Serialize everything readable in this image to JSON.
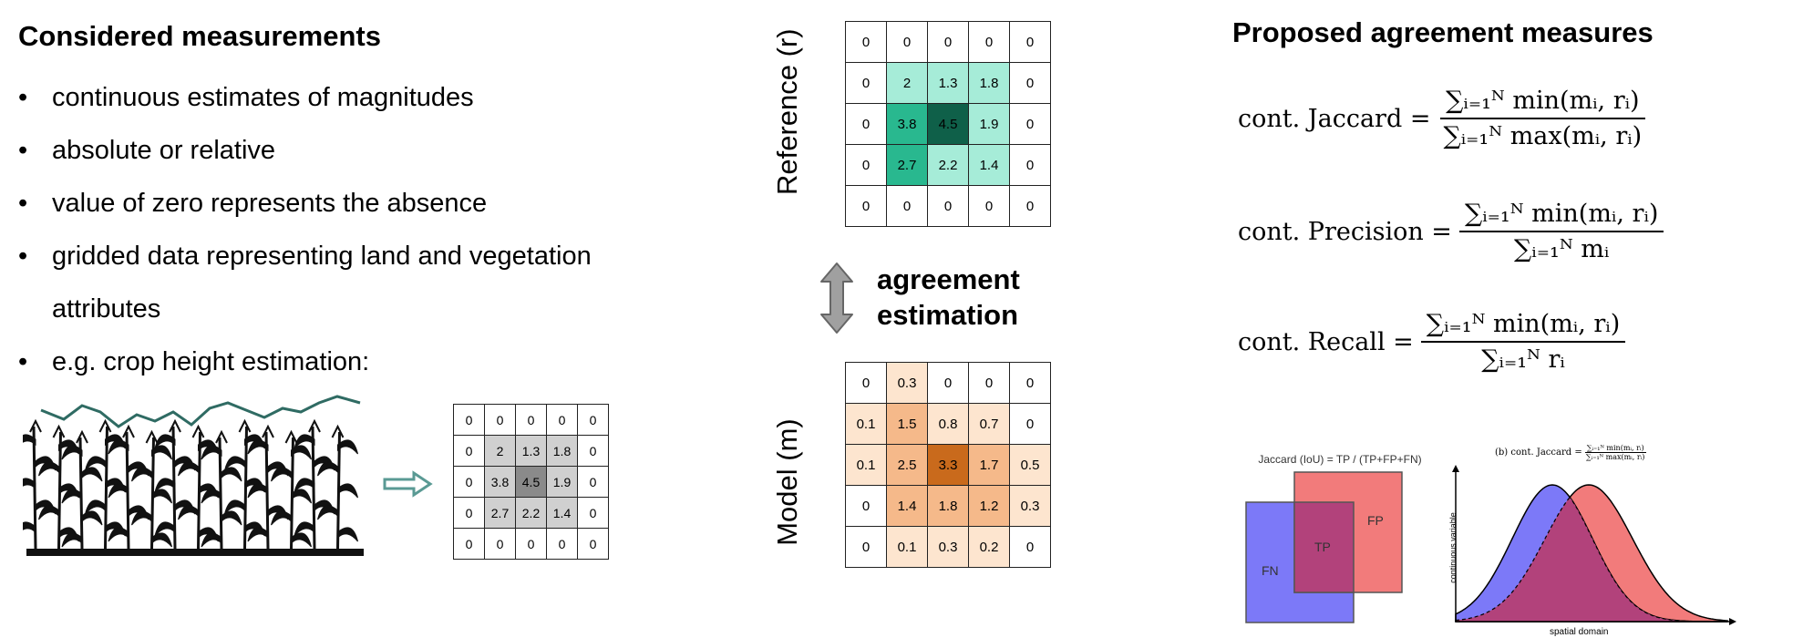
{
  "left": {
    "title": "Considered measurements",
    "bullets": [
      "continuous estimates of magnitudes",
      "absolute or relative",
      "value of zero represents the absence",
      "gridded data representing land and vegetation",
      "e.g. crop height estimation:"
    ],
    "bullet4_cont": "attributes",
    "crop_grid": [
      [
        "0",
        "0",
        "0",
        "0",
        "0"
      ],
      [
        "0",
        "2",
        "1.3",
        "1.8",
        "0"
      ],
      [
        "0",
        "3.8",
        "4.5",
        "1.9",
        "0"
      ],
      [
        "0",
        "2.7",
        "2.2",
        "1.4",
        "0"
      ],
      [
        "0",
        "0",
        "0",
        "0",
        "0"
      ]
    ]
  },
  "middle": {
    "reference_label": "Reference (r)",
    "model_label": "Model (m)",
    "agreement_line1": "agreement",
    "agreement_line2": "estimation",
    "reference_grid": [
      [
        "0",
        "0",
        "0",
        "0",
        "0"
      ],
      [
        "0",
        "2",
        "1.3",
        "1.8",
        "0"
      ],
      [
        "0",
        "3.8",
        "4.5",
        "1.9",
        "0"
      ],
      [
        "0",
        "2.7",
        "2.2",
        "1.4",
        "0"
      ],
      [
        "0",
        "0",
        "0",
        "0",
        "0"
      ]
    ],
    "model_grid": [
      [
        "0",
        "0.3",
        "0",
        "0",
        "0"
      ],
      [
        "0.1",
        "1.5",
        "0.8",
        "0.7",
        "0"
      ],
      [
        "0.1",
        "2.5",
        "3.3",
        "1.7",
        "0.5"
      ],
      [
        "0",
        "1.4",
        "1.8",
        "1.2",
        "0.3"
      ],
      [
        "0",
        "0.1",
        "0.3",
        "0.2",
        "0"
      ]
    ]
  },
  "right": {
    "title": "Proposed agreement measures",
    "formulas": [
      {
        "name": "cont. Jaccard =",
        "numerator": "∑ᵢ₌₁ᴺ min(mᵢ, rᵢ)",
        "denominator": "∑ᵢ₌₁ᴺ max(mᵢ, rᵢ)"
      },
      {
        "name": "cont. Precision =",
        "numerator": "∑ᵢ₌₁ᴺ min(mᵢ, rᵢ)",
        "denominator": "∑ᵢ₌₁ᴺ mᵢ"
      },
      {
        "name": "cont. Recall =",
        "numerator": "∑ᵢ₌₁ᴺ min(mᵢ, rᵢ)",
        "denominator": "∑ᵢ₌₁ᴺ rᵢ"
      }
    ],
    "venn": {
      "title": "Jaccard (IoU) = TP / (TP+FP+FN)",
      "fn": "FN",
      "tp": "TP",
      "fp": "FP"
    },
    "curves": {
      "title_prefix": "(b)  cont. Jaccard =",
      "title_num": "∑ᵢ₌₁ᴺ min(mᵢ, rᵢ)",
      "title_den": "∑ᵢ₌₁ᴺ max(mᵢ, rᵢ)",
      "ylabel": "continuous variable",
      "xlabel": "spatial domain"
    }
  },
  "colors": {
    "grey_scale": [
      "#ffffff",
      "#d0d0d0",
      "#8a8a8a"
    ],
    "green_scale": [
      "#ffffff",
      "#a6ecd8",
      "#29b88f",
      "#0f6049"
    ],
    "orange_scale": [
      "#ffffff",
      "#fde5cf",
      "#f5b98a",
      "#c96a1c"
    ],
    "venn_blue": "#7c79f8",
    "venn_red": "#f27b7b",
    "venn_tp": "#b2427b",
    "plant_line": "#2f6b63",
    "arrow_teal": "#5a9a94"
  }
}
